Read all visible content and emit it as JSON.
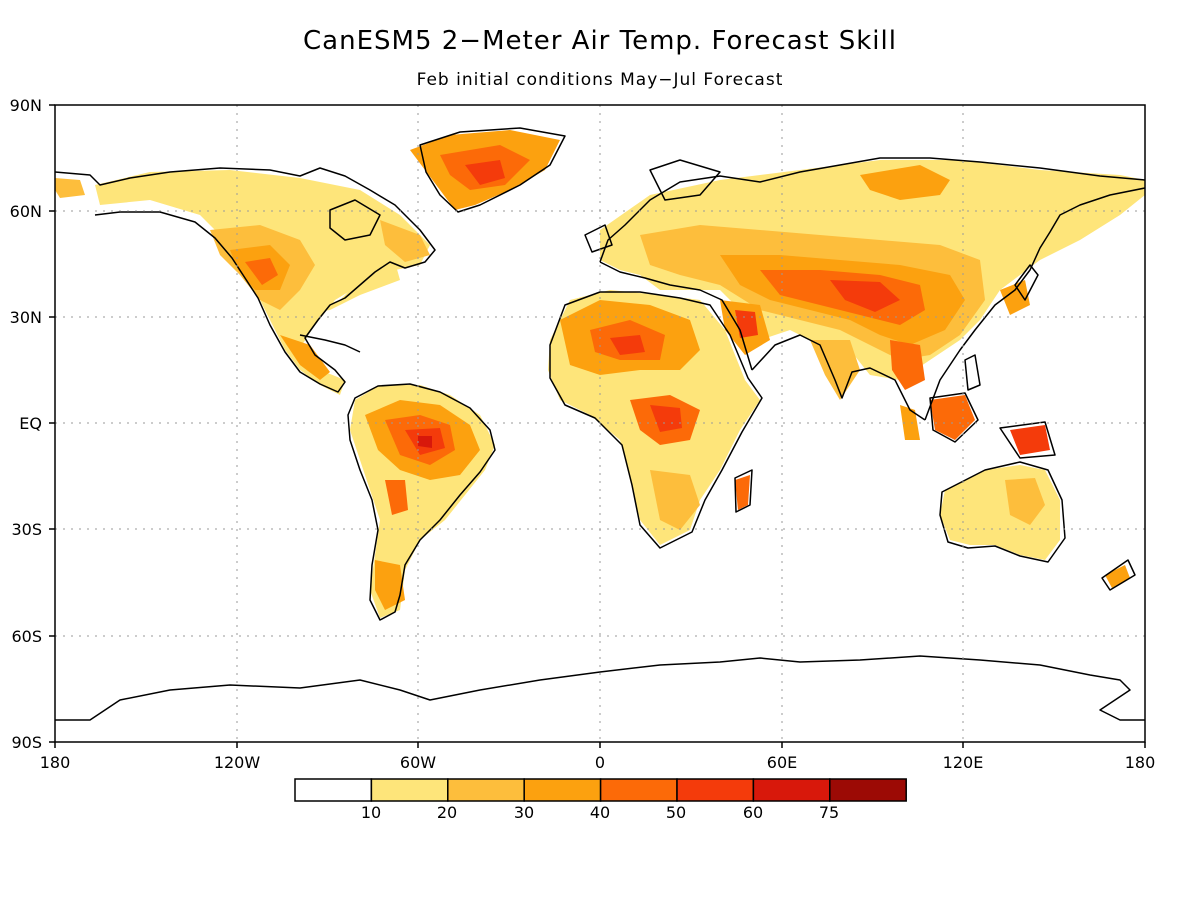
{
  "title": "CanESM5 2−Meter Air Temp. Forecast Skill",
  "subtitle": "Feb initial conditions   May−Jul Forecast",
  "lat_labels": [
    "90N",
    "60N",
    "30N",
    "EQ",
    "30S",
    "60S",
    "90S"
  ],
  "lon_labels": [
    "180",
    "120W",
    "60W",
    "0",
    "60E",
    "120E",
    "180"
  ],
  "colorbar": {
    "colors": [
      "#ffffff",
      "#fee57a",
      "#fdbe3c",
      "#fca10f",
      "#fc6a08",
      "#f43b0b",
      "#d8180b",
      "#9c0a05"
    ],
    "labels": [
      "10",
      "20",
      "30",
      "40",
      "50",
      "60",
      "75"
    ]
  }
}
